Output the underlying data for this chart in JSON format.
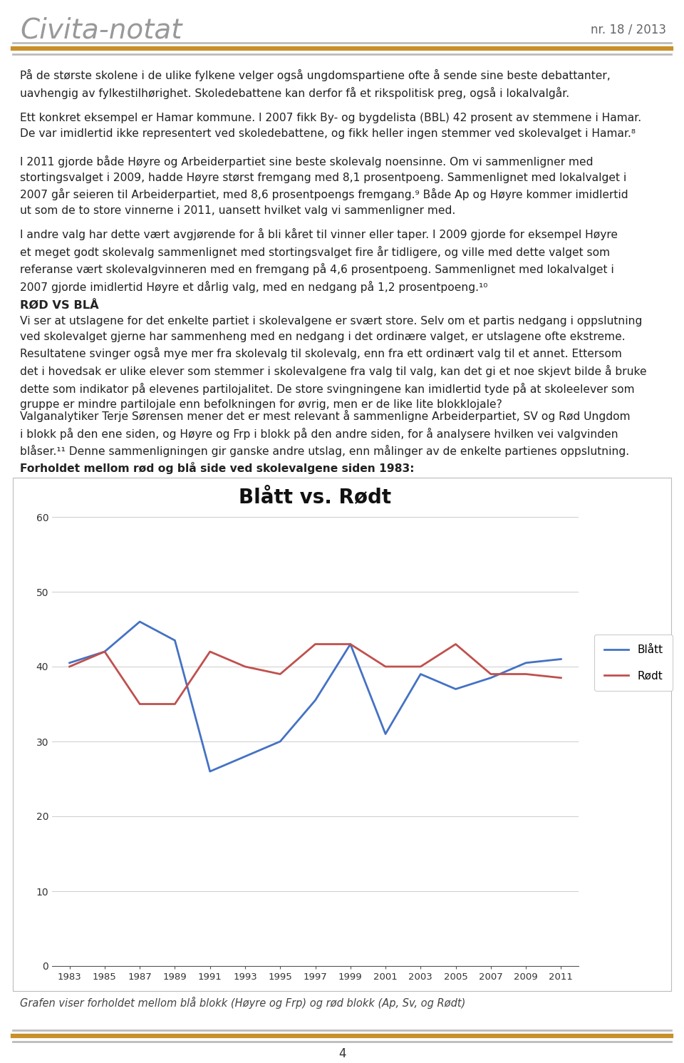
{
  "title": "Blått vs. Rødt",
  "years": [
    1983,
    1985,
    1987,
    1989,
    1991,
    1993,
    1995,
    1997,
    1999,
    2001,
    2003,
    2005,
    2007,
    2009,
    2011
  ],
  "blatt": [
    40.5,
    42.0,
    46.0,
    43.5,
    26.0,
    28.0,
    30.0,
    35.5,
    43.0,
    31.0,
    39.0,
    37.0,
    38.5,
    40.5,
    41.0
  ],
  "rodt": [
    40.0,
    42.0,
    35.0,
    35.0,
    42.0,
    40.0,
    39.0,
    43.0,
    43.0,
    40.0,
    40.0,
    43.0,
    39.0,
    39.0,
    38.5
  ],
  "blatt_color": "#4472C4",
  "rodt_color": "#C0504D",
  "background_color": "#FFFFFF",
  "header_title": "Civita-notat",
  "header_right": "nr. 18 / 2013",
  "line_gray": "#AAAAAA",
  "line_orange": "#C8902A",
  "text_color": "#222222",
  "font_size_body": 11.2,
  "font_size_header": 28,
  "font_size_chart_title": 20,
  "chart_label": "Forholdet mellom rød og blå side ved skolevalgene siden 1983:",
  "caption": "Grafen viser forholdet mellom blå blokk (Høyre og Frp) og rød blokk (Ap, Sv, og Rødt)",
  "footer_page": "4",
  "para1": "På de største skolene i de ulike fylkene velger også ungdomspartiene ofte å sende sine beste debattanter,\nuavhengig av fylkestilhørighet. Skoledebattene kan derfor få et rikspolitisk preg, også i lokalvalgår.",
  "para2": "Ett konkret eksempel er Hamar kommune. I 2007 fikk By- og bygdelista (BBL) 42 prosent av stemmene i Hamar.\nDe var imidlertid ikke representert ved skoledebattene, og fikk heller ingen stemmer ved skolevalget i Hamar.⁸",
  "para3": "I 2011 gjorde både Høyre og Arbeiderpartiet sine beste skolevalg noensinne. Om vi sammenligner med\nstortingsvalget i 2009, hadde Høyre størst fremgang med 8,1 prosentpoeng. Sammenlignet med lokalvalget i\n2007 går seieren til Arbeiderpartiet, med 8,6 prosentpoengs fremgang.⁹ Både Ap og Høyre kommer imidlertid\nut som de to store vinnerne i 2011, uansett hvilket valg vi sammenligner med.",
  "para4": "I andre valg har dette vært avgjørende for å bli kåret til vinner eller taper. I 2009 gjorde for eksempel Høyre\net meget godt skolevalg sammenlignet med stortingsvalget fire år tidligere, og ville med dette valget som\nreferanse vært skolevalgvinneren med en fremgang på 4,6 prosentpoeng. Sammenlignet med lokalvalget i\n2007 gjorde imidlertid Høyre et dårlig valg, med en nedgang på 1,2 prosentpoeng.¹⁰",
  "section_title": "RØD VS BLÅ",
  "para5": "Vi ser at utslagene for det enkelte partiet i skolevalgene er svært store. Selv om et partis nedgang i oppslutning\nved skolevalget gjerne har sammenheng med en nedgang i det ordinære valget, er utslagene ofte ekstreme.\nResultatene svinger også mye mer fra skolevalg til skolevalg, enn fra ett ordinært valg til et annet. Ettersom\ndet i hovedsak er ulike elever som stemmer i skolevalgene fra valg til valg, kan det gi et noe skjevt bilde å bruke\ndette som indikator på elevenes partilojalitet. De store svingningene kan imidlertid tyde på at skoleelever som\ngruppe er mindre partilojale enn befolkningen for øvrig, men er de like lite blokklojale?",
  "para6": "Valganalytiker Terje Sørensen mener det er mest relevant å sammenligne Arbeiderpartiet, SV og Rød Ungdom\ni blokk på den ene siden, og Høyre og Frp i blokk på den andre siden, for å analysere hvilken vei valgvinden\nblåser.¹¹ Denne sammenligningen gir ganske andre utslag, enn målinger av de enkelte partienes oppslutning."
}
